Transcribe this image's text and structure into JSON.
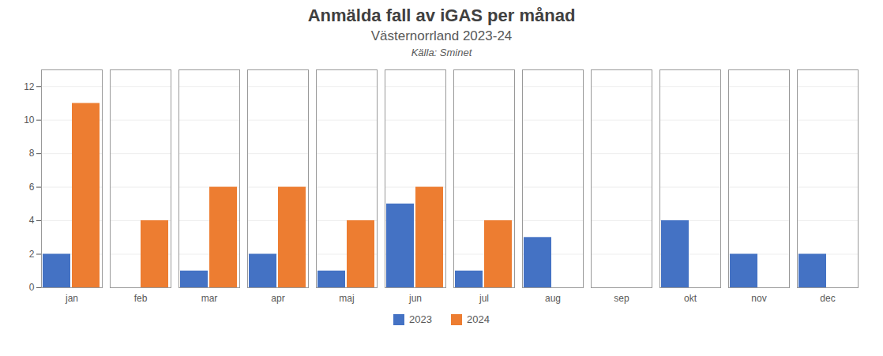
{
  "chart_data": {
    "type": "bar",
    "title": "Anmälda fall av iGAS per månad",
    "subtitle": "Västernorrland 2023-24",
    "source": "Källa: Sminet",
    "categories": [
      "jan",
      "feb",
      "mar",
      "apr",
      "maj",
      "jun",
      "jul",
      "aug",
      "sep",
      "okt",
      "nov",
      "dec"
    ],
    "series": [
      {
        "name": "2023",
        "color": "#4472C4",
        "values": [
          2,
          0,
          1,
          2,
          1,
          5,
          1,
          3,
          0,
          4,
          2,
          2
        ]
      },
      {
        "name": "2024",
        "color": "#ED7D31",
        "values": [
          11,
          4,
          6,
          6,
          4,
          6,
          4,
          0,
          0,
          0,
          0,
          0
        ]
      }
    ],
    "ylim": [
      0,
      13
    ],
    "yticks": [
      0,
      2,
      4,
      6,
      8,
      10,
      12
    ],
    "grid": true,
    "legend": "bottom"
  }
}
